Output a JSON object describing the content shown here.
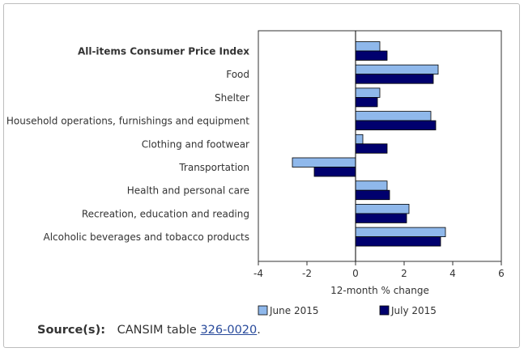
{
  "chart_data": {
    "type": "bar",
    "orientation": "horizontal",
    "categories": [
      "All-items Consumer Price Index",
      "Food",
      "Shelter",
      "Household operations, furnishings and equipment",
      "Clothing and footwear",
      "Transportation",
      "Health and personal care",
      "Recreation, education and reading",
      "Alcoholic beverages and tobacco products"
    ],
    "bold_categories": [
      "All-items Consumer Price Index"
    ],
    "series": [
      {
        "name": "June 2015",
        "color": "#8fb8eb",
        "values": [
          1.0,
          3.4,
          1.0,
          3.1,
          0.3,
          -2.6,
          1.3,
          2.2,
          3.7
        ]
      },
      {
        "name": "July 2015",
        "color": "#00006e",
        "values": [
          1.3,
          3.2,
          0.9,
          3.3,
          1.3,
          -1.7,
          1.4,
          2.1,
          3.5
        ]
      }
    ],
    "xlim": [
      -4,
      6
    ],
    "xticks": [
      "-4",
      "-2",
      "0",
      "2",
      "4",
      "6"
    ],
    "xlabel": "12-month % change",
    "ylabel": "",
    "title": "",
    "grid": false,
    "legend_position": "bottom"
  },
  "source": {
    "label": "Source(s):",
    "text_before": "CANSIM table",
    "link_text": "326-0020",
    "text_after": "."
  }
}
